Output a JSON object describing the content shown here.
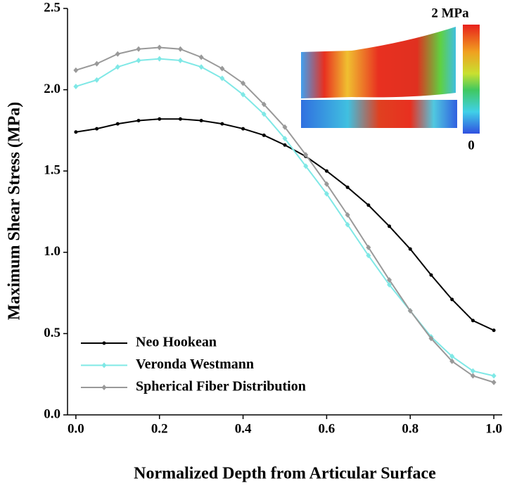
{
  "chart_data": {
    "type": "line",
    "x_label": "Normalized Depth from Articular Surface",
    "y_label": "Maximum Shear Stress (MPa)",
    "x": [
      0,
      0.05,
      0.1,
      0.15,
      0.2,
      0.25,
      0.3,
      0.35,
      0.4,
      0.45,
      0.5,
      0.55,
      0.6,
      0.65,
      0.7,
      0.75,
      0.8,
      0.85,
      0.9,
      0.95,
      1.0
    ],
    "series": [
      {
        "name": "Neo Hookean",
        "color": "#000000",
        "values": [
          1.74,
          1.76,
          1.79,
          1.81,
          1.82,
          1.82,
          1.81,
          1.79,
          1.76,
          1.72,
          1.66,
          1.59,
          1.5,
          1.4,
          1.29,
          1.16,
          1.02,
          0.86,
          0.71,
          0.58,
          0.52
        ]
      },
      {
        "name": "Veronda Westmann",
        "color": "#7fe8e6",
        "values": [
          2.02,
          2.06,
          2.14,
          2.18,
          2.19,
          2.18,
          2.14,
          2.07,
          1.97,
          1.85,
          1.7,
          1.53,
          1.36,
          1.17,
          0.98,
          0.8,
          0.64,
          0.48,
          0.36,
          0.27,
          0.24
        ]
      },
      {
        "name": "Spherical Fiber Distribution",
        "color": "#999999",
        "values": [
          2.12,
          2.16,
          2.22,
          2.25,
          2.26,
          2.25,
          2.2,
          2.13,
          2.04,
          1.91,
          1.77,
          1.6,
          1.42,
          1.23,
          1.03,
          0.83,
          0.64,
          0.47,
          0.33,
          0.24,
          0.2
        ]
      }
    ],
    "xlim": [
      -0.02,
      1.02
    ],
    "ylim": [
      0,
      2.5
    ],
    "xticks": [
      {
        "value": 0,
        "label": "0.0"
      },
      {
        "value": 0.2,
        "label": "0.2"
      },
      {
        "value": 0.4,
        "label": "0.4"
      },
      {
        "value": 0.6,
        "label": "0.6"
      },
      {
        "value": 0.8,
        "label": "0.8"
      },
      {
        "value": 1.0,
        "label": "1.0"
      }
    ],
    "yticks": [
      {
        "value": 0,
        "label": "0.0"
      },
      {
        "value": 0.5,
        "label": "0.5"
      },
      {
        "value": 1.0,
        "label": "1.0"
      },
      {
        "value": 1.5,
        "label": "1.5"
      },
      {
        "value": 2.0,
        "label": "2.0"
      },
      {
        "value": 2.5,
        "label": "2.5"
      }
    ],
    "legend": "lower left",
    "inset": {
      "max_label": "2 MPa",
      "min_label": "0"
    }
  }
}
